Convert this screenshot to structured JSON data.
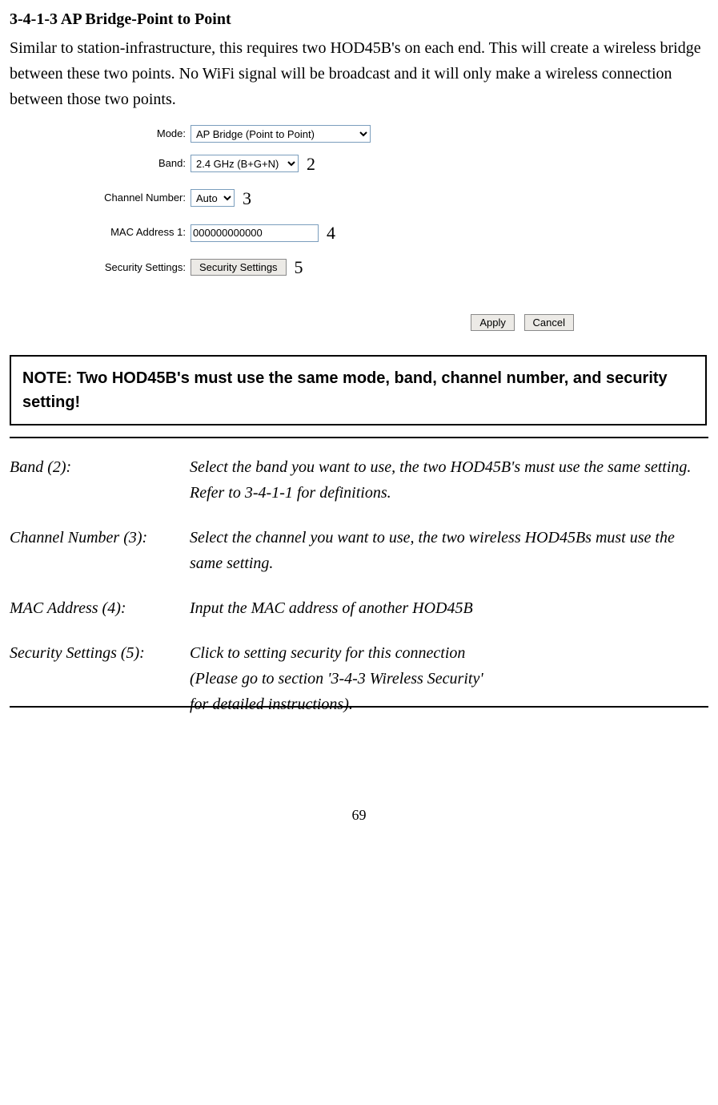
{
  "section": {
    "title": "3-4-1-3 AP Bridge-Point to Point",
    "intro": "Similar to station-infrastructure, this requires two HOD45B's on each end.    This will create a wireless bridge between these two points.    No WiFi signal will be broadcast and it will only make a wireless connection between those two points."
  },
  "form": {
    "mode": {
      "label": "Mode:",
      "value": "AP Bridge (Point to Point)",
      "annot": ""
    },
    "band": {
      "label": "Band:",
      "value": "2.4 GHz (B+G+N)",
      "annot": "2"
    },
    "chan": {
      "label": "Channel Number:",
      "value": "Auto",
      "annot": "3"
    },
    "mac": {
      "label": "MAC Address 1:",
      "value": "000000000000",
      "annot": "4"
    },
    "sec": {
      "label": "Security Settings:",
      "button": "Security Settings",
      "annot": "5"
    },
    "apply": "Apply",
    "cancel": "Cancel"
  },
  "note": "NOTE: Two HOD45B's must use the same mode, band, channel number, and security setting!",
  "defs": {
    "band": {
      "term": "Band (2):",
      "desc": "Select the band you want to use, the two HOD45B's must use the same setting.    Refer to 3-4-1-1 for definitions."
    },
    "chan": {
      "term": "Channel Number (3):",
      "desc": "Select the channel you want to use, the two wireless HOD45Bs must use the same setting."
    },
    "mac": {
      "term": "MAC Address (4):",
      "desc": "Input the MAC address of another HOD45B"
    },
    "sec": {
      "term": "Security Settings (5):",
      "desc": "Click to setting security for this connection\n(Please go to section '3-4-3 Wireless Security'\nfor detailed instructions)."
    }
  },
  "page_number": "69"
}
